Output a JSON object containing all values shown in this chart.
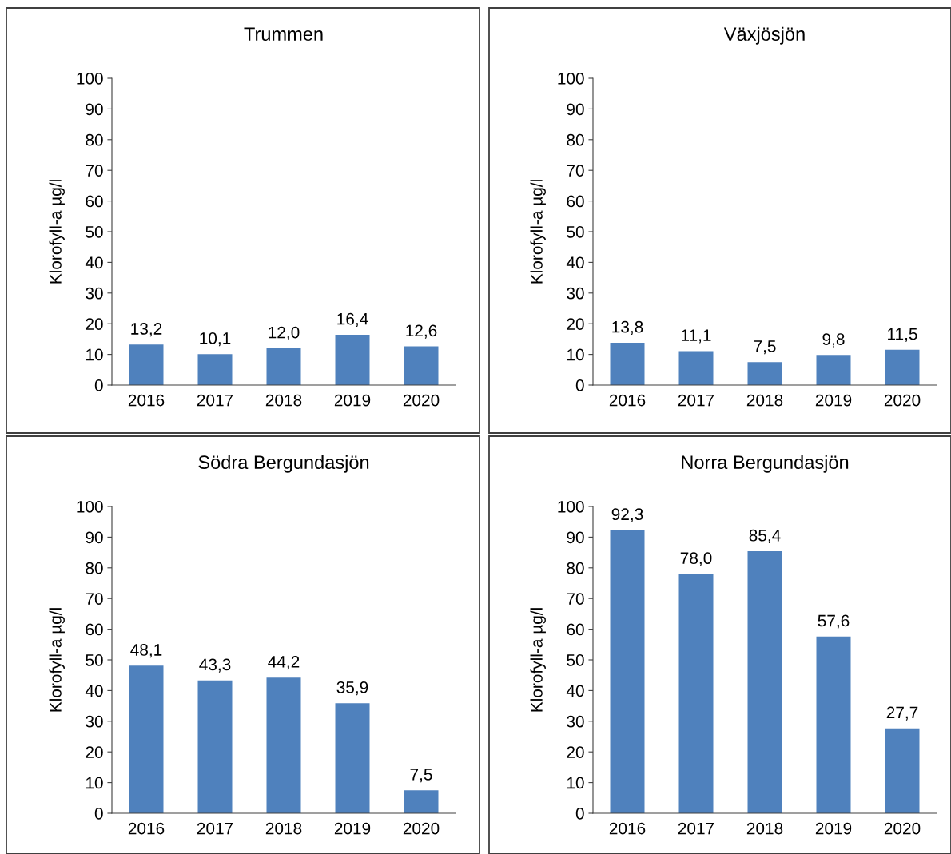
{
  "chart_data": [
    {
      "type": "bar",
      "title": "Trummen",
      "ylabel": "Klorofyll-a µg/l",
      "categories": [
        "2016",
        "2017",
        "2018",
        "2019",
        "2020"
      ],
      "values": [
        13.2,
        10.1,
        12.0,
        16.4,
        12.6
      ],
      "value_labels": [
        "13,2",
        "10,1",
        "12,0",
        "16,4",
        "12,6"
      ],
      "color": "#4f81bd",
      "ylim": [
        0,
        100
      ],
      "yticks": [
        0,
        10,
        20,
        30,
        40,
        50,
        60,
        70,
        80,
        90,
        100
      ],
      "grid": false,
      "legend": false
    },
    {
      "type": "bar",
      "title": "Växjösjön",
      "ylabel": "Klorofyll-a µg/l",
      "categories": [
        "2016",
        "2017",
        "2018",
        "2019",
        "2020"
      ],
      "values": [
        13.8,
        11.1,
        7.5,
        9.8,
        11.5
      ],
      "value_labels": [
        "13,8",
        "11,1",
        "7,5",
        "9,8",
        "11,5"
      ],
      "color": "#4f81bd",
      "ylim": [
        0,
        100
      ],
      "yticks": [
        0,
        10,
        20,
        30,
        40,
        50,
        60,
        70,
        80,
        90,
        100
      ],
      "grid": false,
      "legend": false
    },
    {
      "type": "bar",
      "title": "Södra Bergundasjön",
      "ylabel": "Klorofyll-a µg/l",
      "categories": [
        "2016",
        "2017",
        "2018",
        "2019",
        "2020"
      ],
      "values": [
        48.1,
        43.3,
        44.2,
        35.9,
        7.5
      ],
      "value_labels": [
        "48,1",
        "43,3",
        "44,2",
        "35,9",
        "7,5"
      ],
      "color": "#4f81bd",
      "ylim": [
        0,
        100
      ],
      "yticks": [
        0,
        10,
        20,
        30,
        40,
        50,
        60,
        70,
        80,
        90,
        100
      ],
      "grid": false,
      "legend": false
    },
    {
      "type": "bar",
      "title": "Norra Bergundasjön",
      "ylabel": "Klorofyll-a µg/l",
      "categories": [
        "2016",
        "2017",
        "2018",
        "2019",
        "2020"
      ],
      "values": [
        92.3,
        78.0,
        85.4,
        57.6,
        27.7
      ],
      "value_labels": [
        "92,3",
        "78,0",
        "85,4",
        "57,6",
        "27,7"
      ],
      "color": "#4f81bd",
      "ylim": [
        0,
        100
      ],
      "yticks": [
        0,
        10,
        20,
        30,
        40,
        50,
        60,
        70,
        80,
        90,
        100
      ],
      "grid": false,
      "legend": false
    }
  ]
}
